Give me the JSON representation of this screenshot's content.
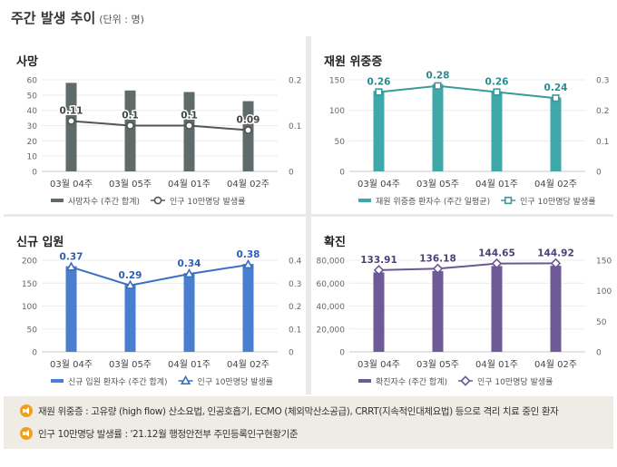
{
  "header": {
    "title": "주간 발생 추이",
    "unit": "(단위 : 명)"
  },
  "panels": [
    {
      "title": "사망"
    },
    {
      "title": "재원 위중증"
    },
    {
      "title": "신규 입원"
    },
    {
      "title": "확진"
    }
  ],
  "chart_data": [
    {
      "type": "bar",
      "categories": [
        "03월 04주",
        "03월 05주",
        "04월 01주",
        "04월 02주"
      ],
      "bar_series": {
        "name": "사망자수 (주간 합계)",
        "values": [
          58,
          53,
          52,
          46
        ],
        "color": "#5f6b6b"
      },
      "line_series": {
        "name": "인구 10만명당 발생률",
        "values": [
          0.11,
          0.1,
          0.1,
          0.09
        ],
        "labels": [
          "0.11",
          "0.1",
          "0.1",
          "0.09"
        ],
        "color": "#555555",
        "marker": "circle"
      },
      "ylim_left": [
        0,
        60
      ],
      "yticks_left": [
        "0",
        "10",
        "20",
        "30",
        "40",
        "50",
        "60"
      ],
      "ylim_right": [
        0,
        0.2
      ],
      "yticks_right": [
        "0",
        "0.1",
        "0.2"
      ],
      "label_color": "#444444"
    },
    {
      "type": "bar",
      "categories": [
        "03월 04주",
        "03월 05주",
        "04월 01주",
        "04월 02주"
      ],
      "bar_series": {
        "name": "재원 위중증 환자수 (주간 일평균)",
        "values": [
          132,
          143,
          131,
          121
        ],
        "color": "#3fa8a8"
      },
      "line_series": {
        "name": "인구 10만명당 발생률",
        "values": [
          0.26,
          0.28,
          0.26,
          0.24
        ],
        "labels": [
          "0.26",
          "0.28",
          "0.26",
          "0.24"
        ],
        "color": "#3a9a9a",
        "marker": "square"
      },
      "ylim_left": [
        0,
        150
      ],
      "yticks_left": [
        "0",
        "50",
        "100",
        "150"
      ],
      "ylim_right": [
        0,
        0.3
      ],
      "yticks_right": [
        "0",
        "0.1",
        "0.2",
        "0.3"
      ],
      "label_color": "#2a8c8c"
    },
    {
      "type": "bar",
      "categories": [
        "03월 04주",
        "03월 05주",
        "04월 01주",
        "04월 02주"
      ],
      "bar_series": {
        "name": "신규 입원 환자수 (주간 합계)",
        "values": [
          187,
          148,
          172,
          192
        ],
        "color": "#4a7ed0"
      },
      "line_series": {
        "name": "인구 10만명당 발생률",
        "values": [
          0.37,
          0.29,
          0.34,
          0.38
        ],
        "labels": [
          "0.37",
          "0.29",
          "0.34",
          "0.38"
        ],
        "color": "#3b6fc4",
        "marker": "triangle"
      },
      "ylim_left": [
        0,
        200
      ],
      "yticks_left": [
        "0",
        "50",
        "100",
        "150",
        "200"
      ],
      "ylim_right": [
        0,
        0.4
      ],
      "yticks_right": [
        "0",
        "0.1",
        "0.2",
        "0.3",
        "0.4"
      ],
      "label_color": "#2f5fb5"
    },
    {
      "type": "bar",
      "categories": [
        "03월 04주",
        "03월 05주",
        "04월 01주",
        "04월 02주"
      ],
      "bar_series": {
        "name": "확진자수 (주간 합계)",
        "values": [
          69400,
          70600,
          75000,
          75200
        ],
        "color": "#6e5a96"
      },
      "line_series": {
        "name": "인구 10만명당 발생률",
        "values": [
          133.91,
          136.18,
          144.65,
          144.92
        ],
        "labels": [
          "133.91",
          "136.18",
          "144.65",
          "144.92"
        ],
        "color": "#6a5894",
        "marker": "diamond"
      },
      "ylim_left": [
        0,
        80000
      ],
      "yticks_left": [
        "0",
        "20,000",
        "40,000",
        "60,000",
        "80,000"
      ],
      "ylim_right": [
        0,
        150
      ],
      "yticks_right": [
        "0",
        "50",
        "100",
        "150"
      ],
      "label_color": "#4e3f78"
    }
  ],
  "notes": [
    "재원 위중증 : 고유량 (high flow) 산소요법, 인공호흡기, ECMO (체외막산소공급), CRRT(지속적인대체요법) 등으로 격리 치료 중인 환자",
    "인구 10만명당 발생률 : '21.12월 행정안전부 주민등록인구현황기준"
  ]
}
